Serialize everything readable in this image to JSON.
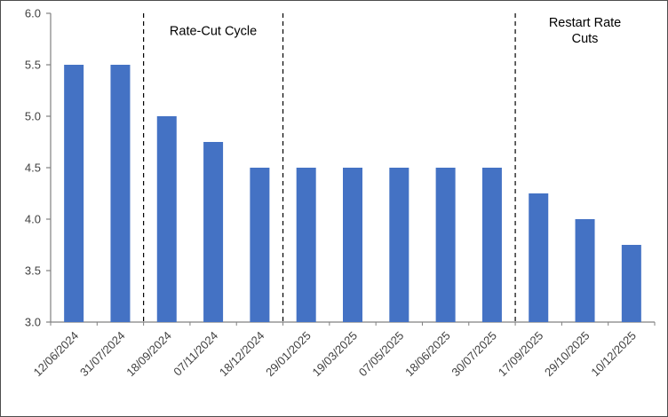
{
  "chart_data": {
    "type": "bar",
    "title": "",
    "xlabel": "",
    "ylabel": "",
    "categories": [
      "12/06/2024",
      "31/07/2024",
      "18/09/2024",
      "07/11/2024",
      "18/12/2024",
      "29/01/2025",
      "19/03/2025",
      "07/05/2025",
      "18/06/2025",
      "30/07/2025",
      "17/09/2025",
      "29/10/2025",
      "10/12/2025"
    ],
    "values": [
      5.5,
      5.5,
      5.0,
      4.75,
      4.5,
      4.5,
      4.5,
      4.5,
      4.5,
      4.5,
      4.25,
      4.0,
      3.75
    ],
    "ylim": [
      3.0,
      6.0
    ],
    "yticks": [
      3.0,
      3.5,
      4.0,
      4.5,
      5.0,
      5.5,
      6.0
    ],
    "ytick_labels": [
      "3.0",
      "3.5",
      "4.0",
      "4.5",
      "5.0",
      "5.5",
      "6.0"
    ],
    "grid": false,
    "legend": "none",
    "bar_color": "#4472C4",
    "axis_color": "#808080",
    "dashed_line_color": "#000000",
    "annotations": [
      {
        "lines": [
          "Rate-Cut Cycle"
        ],
        "x_category": 3.0,
        "y_value": 5.79
      },
      {
        "lines": [
          "Restart Rate",
          "Cuts"
        ],
        "x_category": 11.0,
        "y_value": 5.87
      }
    ],
    "dashed_lines": [
      {
        "boundary_index": 2
      },
      {
        "boundary_index": 5
      },
      {
        "boundary_index": 10
      }
    ]
  }
}
